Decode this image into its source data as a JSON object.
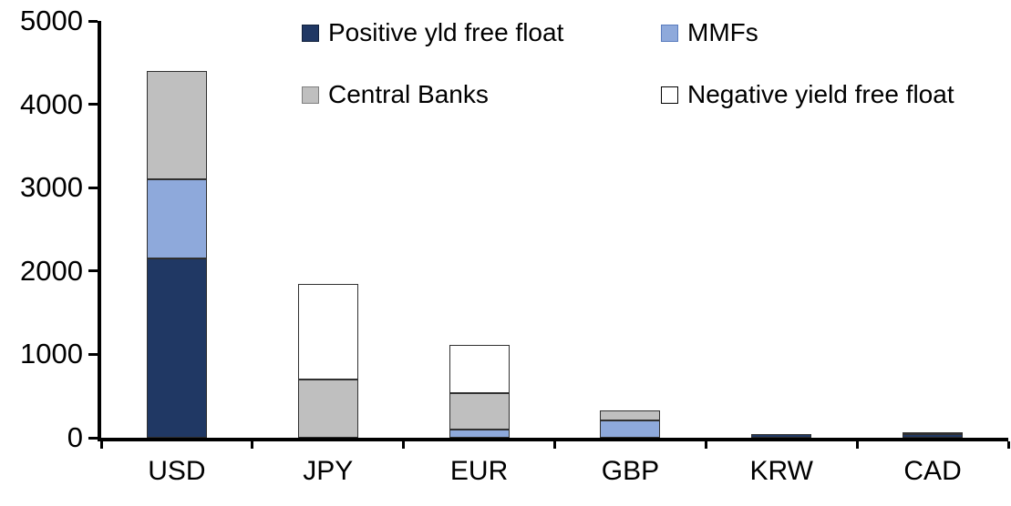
{
  "chart_data": {
    "type": "bar",
    "stacked": true,
    "title": "",
    "xlabel": "",
    "ylabel": "",
    "categories": [
      "USD",
      "JPY",
      "EUR",
      "GBP",
      "KRW",
      "CAD"
    ],
    "series": [
      {
        "name": "Positive yld free float",
        "color": "#203864",
        "values": [
          2150,
          0,
          0,
          0,
          40,
          40
        ]
      },
      {
        "name": "MMFs",
        "color": "#8ea9db",
        "values": [
          950,
          0,
          100,
          210,
          0,
          0
        ]
      },
      {
        "name": "Central Banks",
        "color": "#bfbfbf",
        "values": [
          1300,
          700,
          435,
          120,
          0,
          20
        ]
      },
      {
        "name": "Negative yield free float",
        "color": "#ffffff",
        "values": [
          0,
          1140,
          575,
          0,
          0,
          0
        ]
      }
    ],
    "totals": {
      "USD": 4400,
      "JPY": 1840,
      "EUR": 1110,
      "GBP": 330,
      "KRW": 40,
      "CAD": 60
    },
    "ylim": [
      0,
      5000
    ],
    "yticks": [
      0,
      1000,
      2000,
      3000,
      4000,
      5000
    ],
    "legend_position": "top",
    "legend_layout": "two-columns-two-rows",
    "grid": false,
    "axis_color": "#000000"
  }
}
